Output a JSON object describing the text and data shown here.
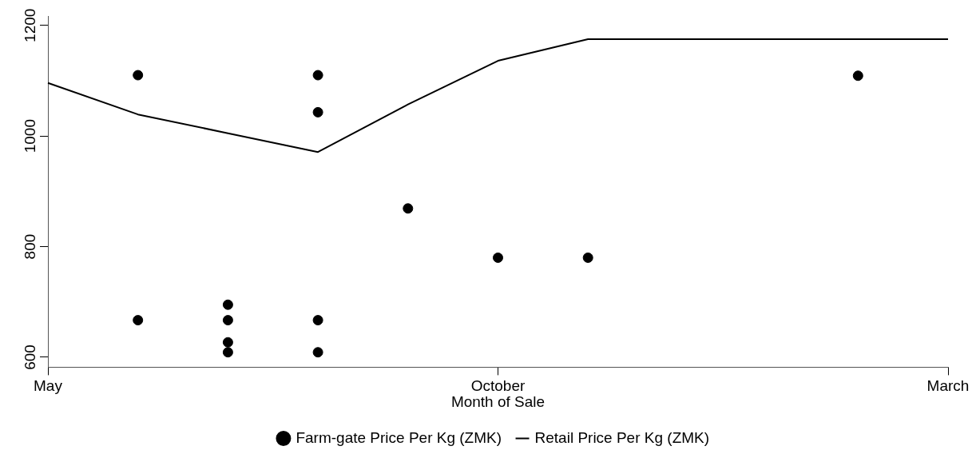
{
  "chart_data": {
    "type": "scatter",
    "xlabel": "Month of Sale",
    "categories": [
      "May",
      null,
      null,
      null,
      null,
      "October",
      null,
      null,
      null,
      null,
      "March"
    ],
    "ylim": [
      582,
      1217
    ],
    "yticks": [
      600,
      800,
      1000,
      1200
    ],
    "grid": false,
    "legend": "bottom",
    "series": [
      {
        "name": "Farm-gate Price Per Kg (ZMK)",
        "type": "scatter",
        "marker": "circle",
        "color": "#000000",
        "values": [
          null,
          1110,
          695,
          1110,
          869,
          780,
          780,
          null,
          null,
          1109,
          null
        ]
      },
      {
        "type": "scatter",
        "marker": "circle",
        "color": "#000000",
        "values": [
          null,
          667,
          667,
          1043,
          null,
          null,
          null,
          null,
          null,
          null,
          null
        ]
      },
      {
        "type": "scatter",
        "marker": "circle",
        "color": "#000000",
        "values": [
          null,
          null,
          627,
          667,
          null,
          null,
          null,
          null,
          null,
          null,
          null
        ]
      },
      {
        "type": "scatter",
        "marker": "circle",
        "color": "#000000",
        "values": [
          null,
          null,
          609,
          609,
          null,
          null,
          null,
          null,
          null,
          null,
          null
        ]
      },
      {
        "name": "Retail Price Per Kg (ZMK)",
        "type": "line",
        "marker": "none",
        "color": "#000000",
        "values": [
          1096,
          1039,
          1005,
          971,
          1057,
          1136,
          1175,
          1175,
          1175,
          1175,
          1175
        ]
      }
    ]
  }
}
